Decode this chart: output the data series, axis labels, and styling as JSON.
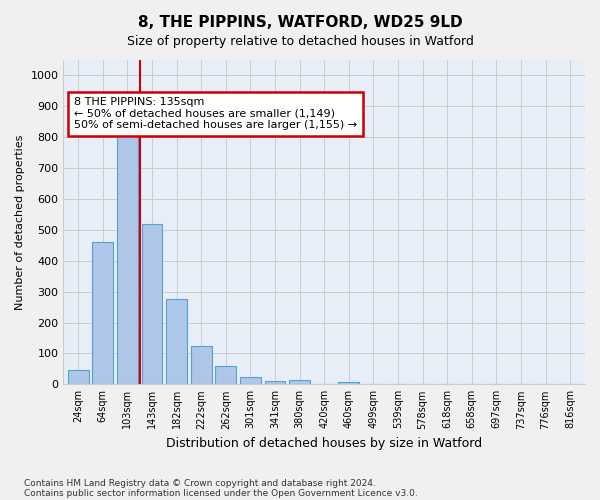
{
  "title_line1": "8, THE PIPPINS, WATFORD, WD25 9LD",
  "title_line2": "Size of property relative to detached houses in Watford",
  "xlabel": "Distribution of detached houses by size in Watford",
  "ylabel": "Number of detached properties",
  "bar_values": [
    45,
    460,
    810,
    520,
    275,
    125,
    58,
    25,
    10,
    13,
    0,
    8,
    0,
    0,
    0,
    0,
    0,
    0,
    0,
    0,
    0
  ],
  "bar_labels": [
    "24sqm",
    "64sqm",
    "103sqm",
    "143sqm",
    "182sqm",
    "222sqm",
    "262sqm",
    "301sqm",
    "341sqm",
    "380sqm",
    "420sqm",
    "460sqm",
    "499sqm",
    "539sqm",
    "578sqm",
    "618sqm",
    "658sqm",
    "697sqm",
    "737sqm",
    "776sqm",
    "816sqm"
  ],
  "bar_color": "#aec6e8",
  "bar_edge_color": "#5a9fd4",
  "annotation_text": "8 THE PIPPINS: 135sqm\n← 50% of detached houses are smaller (1,149)\n50% of semi-detached houses are larger (1,155) →",
  "annotation_box_color": "#ffffff",
  "annotation_box_edge": "#cc0000",
  "vline_pos": 2.5,
  "vline_color": "#cc0000",
  "ylim": [
    0,
    1050
  ],
  "yticks": [
    0,
    100,
    200,
    300,
    400,
    500,
    600,
    700,
    800,
    900,
    1000
  ],
  "grid_color": "#cccccc",
  "bg_color": "#e8eef8",
  "fig_bg_color": "#f0f0f0",
  "footer_line1": "Contains HM Land Registry data © Crown copyright and database right 2024.",
  "footer_line2": "Contains public sector information licensed under the Open Government Licence v3.0."
}
